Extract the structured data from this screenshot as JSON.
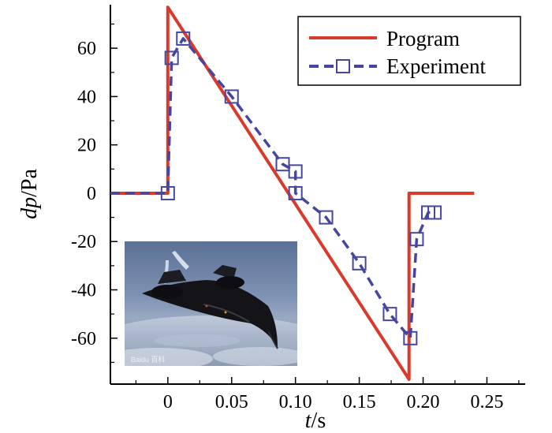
{
  "chart_data": {
    "type": "line",
    "xlabel": {
      "italic": "t",
      "rest": "/s"
    },
    "ylabel": {
      "italic": "dp",
      "rest": "/Pa"
    },
    "xlim": [
      -0.045,
      0.28
    ],
    "ylim": [
      -79,
      78
    ],
    "xticks": [
      {
        "value": 0,
        "label": "0"
      },
      {
        "value": 0.05,
        "label": "0.05"
      },
      {
        "value": 0.1,
        "label": "0.10"
      },
      {
        "value": 0.15,
        "label": "0.15"
      },
      {
        "value": 0.2,
        "label": "0.20"
      },
      {
        "value": 0.25,
        "label": "0.25"
      }
    ],
    "yticks": [
      {
        "value": 60,
        "label": "60"
      },
      {
        "value": 40,
        "label": "40"
      },
      {
        "value": 20,
        "label": "20"
      },
      {
        "value": 0,
        "label": "0"
      },
      {
        "value": -20,
        "label": "-20"
      },
      {
        "value": -40,
        "label": "-40"
      },
      {
        "value": -60,
        "label": "-60"
      }
    ],
    "series": [
      {
        "name": "Program",
        "color": "#d93a2b",
        "style": "solid",
        "marker": "none",
        "x": [
          -0.045,
          0,
          0,
          0.189,
          0.189,
          0.24
        ],
        "y": [
          0,
          0,
          77,
          -77,
          0,
          0
        ]
      },
      {
        "name": "Experiment",
        "color": "#4646a0",
        "style": "dashed",
        "marker": "square",
        "x": [
          -0.045,
          0,
          0.003,
          0.012,
          0.05,
          0.09,
          0.1,
          0.1,
          0.124,
          0.15,
          0.174,
          0.19,
          0.195,
          0.204,
          0.209
        ],
        "y": [
          0,
          0,
          56,
          64,
          40,
          12,
          9,
          0,
          -10,
          -29,
          -50,
          -60,
          -19,
          -8,
          -8
        ],
        "marker_start": 1
      }
    ],
    "legend": {
      "position": "top-right"
    },
    "inset": {
      "description": "photo of black SR-71 aircraft over clouds",
      "watermark": "Baidu 百科"
    }
  }
}
